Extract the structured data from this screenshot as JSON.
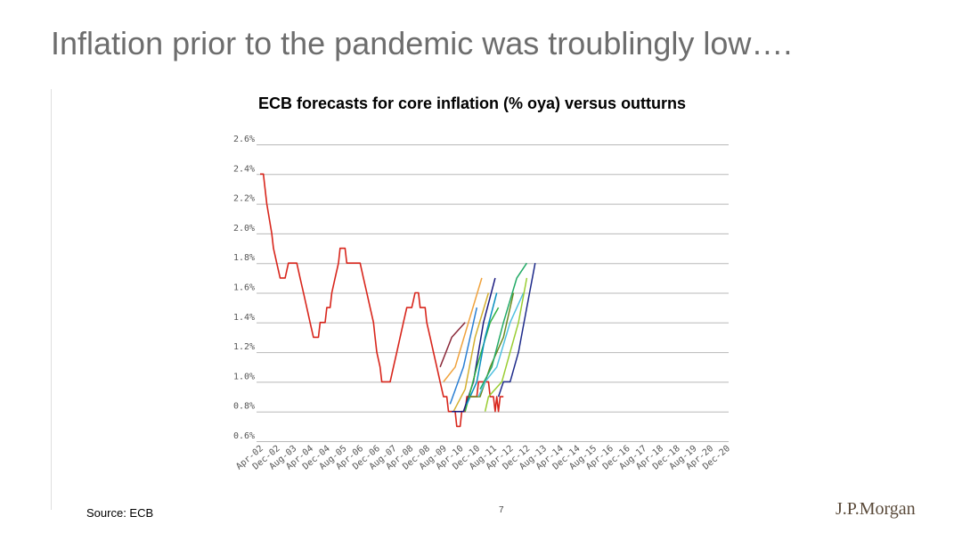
{
  "slide": {
    "title": "Inflation prior to the pandemic was troublingly low….",
    "source": "Source: ECB",
    "page_number": "7",
    "logo_text": "J.P.Morgan"
  },
  "colors": {
    "title": "#6d6d6d",
    "grid": "#b8b8b8",
    "outturn": "#d8261c",
    "forecasts": [
      "#8b2a3a",
      "#f0a23c",
      "#2a7fd4",
      "#d4b030",
      "#1a1a80",
      "#30b040",
      "#0a90c0",
      "#6a8a20",
      "#50c0e0",
      "#22aa66",
      "#9acd32",
      "#1d2a8a"
    ]
  },
  "chart_data": {
    "type": "line",
    "title": "ECB forecasts for core inflation (% oya) versus outturns",
    "xlabel": "",
    "ylabel": "",
    "ylim": [
      0.6,
      2.6
    ],
    "y_ticks": [
      "0.6%",
      "0.8%",
      "1.0%",
      "1.2%",
      "1.4%",
      "1.6%",
      "1.8%",
      "2.0%",
      "2.2%",
      "2.4%",
      "2.6%"
    ],
    "x_ticks": [
      "Apr-02",
      "Dec-02",
      "Aug-03",
      "Apr-04",
      "Dec-04",
      "Aug-05",
      "Apr-06",
      "Dec-06",
      "Aug-07",
      "Apr-08",
      "Dec-08",
      "Aug-09",
      "Apr-10",
      "Dec-10",
      "Aug-11",
      "Apr-12",
      "Dec-12",
      "Aug-13",
      "Apr-14",
      "Dec-14",
      "Aug-15",
      "Apr-16",
      "Dec-16",
      "Aug-17",
      "Apr-18",
      "Dec-18",
      "Aug-19",
      "Apr-20",
      "Dec-20"
    ],
    "grid": true,
    "legend": "none",
    "series": [
      {
        "role": "outturn",
        "points": [
          [
            0,
            2.4
          ],
          [
            0.2,
            2.4
          ],
          [
            0.3,
            2.3
          ],
          [
            0.4,
            2.2
          ],
          [
            0.55,
            2.1
          ],
          [
            0.7,
            2.0
          ],
          [
            0.8,
            1.9
          ],
          [
            1.0,
            1.8
          ],
          [
            1.2,
            1.7
          ],
          [
            1.5,
            1.7
          ],
          [
            1.7,
            1.8
          ],
          [
            2.2,
            1.8
          ],
          [
            2.4,
            1.7
          ],
          [
            2.6,
            1.6
          ],
          [
            2.8,
            1.5
          ],
          [
            3.0,
            1.4
          ],
          [
            3.2,
            1.3
          ],
          [
            3.5,
            1.3
          ],
          [
            3.6,
            1.4
          ],
          [
            3.9,
            1.4
          ],
          [
            4.0,
            1.5
          ],
          [
            4.2,
            1.5
          ],
          [
            4.3,
            1.6
          ],
          [
            4.5,
            1.7
          ],
          [
            4.7,
            1.8
          ],
          [
            4.8,
            1.9
          ],
          [
            5.1,
            1.9
          ],
          [
            5.2,
            1.8
          ],
          [
            6.0,
            1.8
          ],
          [
            6.2,
            1.7
          ],
          [
            6.4,
            1.6
          ],
          [
            6.6,
            1.5
          ],
          [
            6.8,
            1.4
          ],
          [
            6.9,
            1.3
          ],
          [
            7.0,
            1.2
          ],
          [
            7.2,
            1.1
          ],
          [
            7.3,
            1.0
          ],
          [
            7.8,
            1.0
          ],
          [
            8.0,
            1.1
          ],
          [
            8.2,
            1.2
          ],
          [
            8.4,
            1.3
          ],
          [
            8.6,
            1.4
          ],
          [
            8.8,
            1.5
          ],
          [
            9.1,
            1.5
          ],
          [
            9.3,
            1.6
          ],
          [
            9.5,
            1.6
          ],
          [
            9.6,
            1.5
          ],
          [
            9.9,
            1.5
          ],
          [
            10.0,
            1.4
          ],
          [
            10.2,
            1.3
          ],
          [
            10.4,
            1.2
          ],
          [
            10.6,
            1.1
          ],
          [
            10.8,
            1.0
          ],
          [
            11.0,
            0.9
          ],
          [
            11.2,
            0.9
          ],
          [
            11.3,
            0.8
          ],
          [
            11.7,
            0.8
          ],
          [
            11.8,
            0.7
          ],
          [
            12.0,
            0.7
          ],
          [
            12.1,
            0.8
          ],
          [
            12.3,
            0.8
          ],
          [
            12.4,
            0.9
          ],
          [
            13.0,
            0.9
          ],
          [
            13.1,
            1.0
          ],
          [
            13.7,
            1.0
          ],
          [
            13.8,
            0.9
          ],
          [
            14.0,
            0.9
          ],
          [
            14.1,
            0.8
          ],
          [
            14.2,
            0.9
          ],
          [
            14.3,
            0.8
          ],
          [
            14.4,
            0.9
          ],
          [
            14.6,
            0.9
          ]
        ]
      },
      {
        "role": "forecast",
        "points": [
          [
            10.8,
            1.1
          ],
          [
            11.5,
            1.3
          ],
          [
            12.3,
            1.4
          ]
        ]
      },
      {
        "role": "forecast",
        "points": [
          [
            11.0,
            1.0
          ],
          [
            11.7,
            1.1
          ],
          [
            12.5,
            1.4
          ],
          [
            13.3,
            1.7
          ]
        ]
      },
      {
        "role": "forecast",
        "points": [
          [
            11.4,
            0.85
          ],
          [
            12.2,
            1.1
          ],
          [
            13.0,
            1.5
          ]
        ]
      },
      {
        "role": "forecast",
        "points": [
          [
            11.6,
            0.8
          ],
          [
            12.3,
            0.95
          ],
          [
            12.9,
            1.3
          ],
          [
            13.7,
            1.6
          ]
        ]
      },
      {
        "role": "forecast",
        "points": [
          [
            11.5,
            0.8
          ],
          [
            12.2,
            0.8
          ],
          [
            12.8,
            1.0
          ],
          [
            13.4,
            1.4
          ],
          [
            14.1,
            1.7
          ]
        ]
      },
      {
        "role": "forecast",
        "points": [
          [
            12.3,
            0.8
          ],
          [
            13.0,
            1.1
          ],
          [
            13.8,
            1.4
          ],
          [
            14.3,
            1.5
          ]
        ]
      },
      {
        "role": "forecast",
        "points": [
          [
            12.4,
            0.85
          ],
          [
            13.0,
            1.0
          ],
          [
            13.5,
            1.3
          ],
          [
            14.2,
            1.6
          ]
        ]
      },
      {
        "role": "forecast",
        "points": [
          [
            12.5,
            0.9
          ],
          [
            13.2,
            0.9
          ],
          [
            13.8,
            1.1
          ],
          [
            14.6,
            1.3
          ],
          [
            15.2,
            1.6
          ]
        ]
      },
      {
        "role": "forecast",
        "points": [
          [
            13.1,
            0.9
          ],
          [
            13.5,
            1.0
          ],
          [
            14.2,
            1.1
          ],
          [
            15.0,
            1.4
          ],
          [
            15.8,
            1.6
          ]
        ]
      },
      {
        "role": "forecast",
        "points": [
          [
            13.2,
            0.95
          ],
          [
            13.9,
            1.1
          ],
          [
            14.6,
            1.4
          ],
          [
            15.4,
            1.7
          ],
          [
            16.0,
            1.8
          ]
        ]
      },
      {
        "role": "forecast",
        "points": [
          [
            13.5,
            0.8
          ],
          [
            13.7,
            0.9
          ],
          [
            14.5,
            1.0
          ],
          [
            15.0,
            1.2
          ],
          [
            15.5,
            1.4
          ],
          [
            16.0,
            1.7
          ]
        ]
      },
      {
        "role": "forecast",
        "points": [
          [
            14.3,
            0.9
          ],
          [
            14.6,
            1.0
          ],
          [
            15.0,
            1.0
          ],
          [
            15.5,
            1.2
          ],
          [
            16.0,
            1.5
          ],
          [
            16.5,
            1.8
          ]
        ]
      }
    ]
  }
}
